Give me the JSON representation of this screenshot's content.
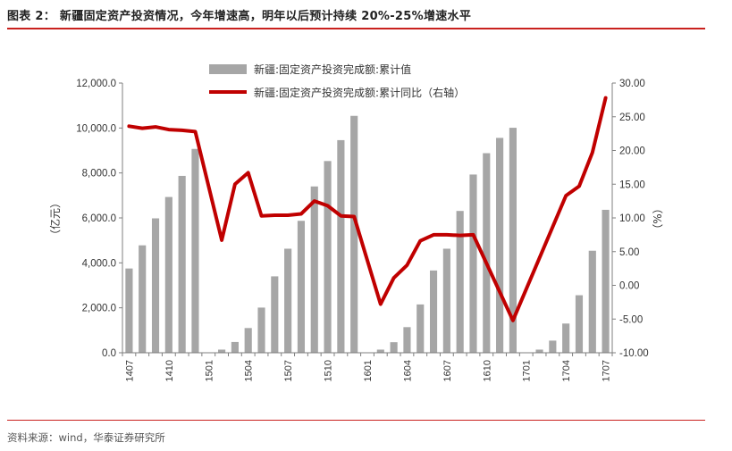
{
  "header": {
    "title": "图表 2：  新疆固定资产投资情况，今年增速高，明年以后预计持续 20%-25%增速水平"
  },
  "footer": {
    "source": "资料来源：wind，华泰证券研究所"
  },
  "colors": {
    "bar": "#a6a6a6",
    "line": "#c00000",
    "rule": "#c9211e"
  },
  "chart_data": {
    "type": "bar+line",
    "x": [
      "1407",
      "1408",
      "1409",
      "1410",
      "1411",
      "1412",
      "1501",
      "1502",
      "1503",
      "1504",
      "1505",
      "1506",
      "1507",
      "1508",
      "1509",
      "1510",
      "1511",
      "1512",
      "1601",
      "1602",
      "1603",
      "1604",
      "1605",
      "1606",
      "1607",
      "1608",
      "1609",
      "1610",
      "1611",
      "1612",
      "1701",
      "1702",
      "1703",
      "1704",
      "1705",
      "1706",
      "1707"
    ],
    "x_tick_labels": [
      "1407",
      "1410",
      "1501",
      "1504",
      "1507",
      "1510",
      "1601",
      "1604",
      "1607",
      "1610",
      "1701",
      "1704",
      "1707"
    ],
    "series": [
      {
        "name": "新疆:固定资产投资完成额:累计值",
        "kind": "bar",
        "axis": "left",
        "values": [
          3750,
          4780,
          5980,
          6930,
          7870,
          9070,
          0,
          140,
          480,
          1100,
          2010,
          3400,
          4630,
          5870,
          7400,
          8530,
          9460,
          10540,
          0,
          140,
          470,
          1140,
          2150,
          3660,
          4630,
          6310,
          7930,
          8880,
          9560,
          10010,
          0,
          140,
          540,
          1300,
          2560,
          4540,
          6360
        ]
      },
      {
        "name": "新疆:固定资产投资完成额:累计同比（右轴）",
        "kind": "line",
        "axis": "right",
        "values": [
          23.6,
          23.3,
          23.5,
          23.1,
          23.0,
          22.8,
          null,
          6.7,
          15.0,
          16.7,
          10.3,
          10.4,
          10.4,
          10.6,
          12.5,
          11.8,
          10.3,
          10.2,
          null,
          -2.8,
          1.1,
          3.0,
          6.6,
          7.5,
          7.5,
          7.4,
          7.5,
          null,
          null,
          -5.2,
          null,
          null,
          null,
          13.3,
          14.7,
          19.7,
          27.8
        ]
      }
    ],
    "line_gap_segments": "continuous",
    "y_left": {
      "label": "（亿元）",
      "lim": [
        0,
        12000
      ],
      "ticks": [
        "0.0",
        "2,000.0",
        "4,000.0",
        "6,000.0",
        "8,000.0",
        "10,000.0",
        "12,000.0"
      ]
    },
    "y_right": {
      "label": "（%）",
      "lim": [
        -10,
        30
      ],
      "ticks": [
        "-10.00",
        "-5.00",
        "0.00",
        "5.00",
        "10.00",
        "15.00",
        "20.00",
        "25.00",
        "30.00"
      ]
    },
    "legend": {
      "bar_label": "新疆:固定资产投资完成额:累计值",
      "line_label": "新疆:固定资产投资完成额:累计同比（右轴）",
      "position": "top-center"
    }
  }
}
